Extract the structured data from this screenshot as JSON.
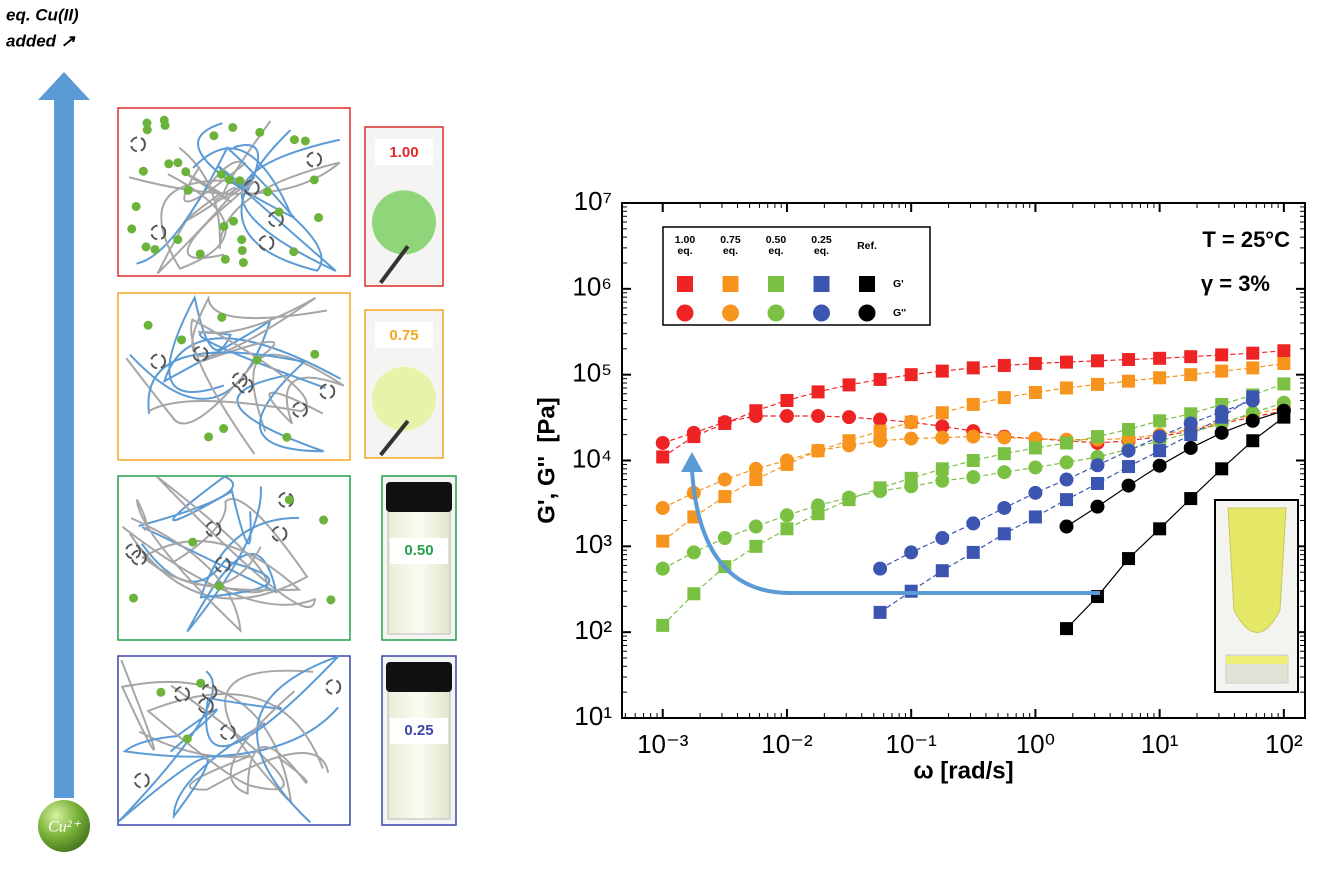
{
  "figure": {
    "axis_label": [
      "eq. Cu(II)",
      "added ↗"
    ],
    "ion": "Cu²⁺",
    "panels": [
      {
        "label": "1.00",
        "color": "#e02a2a"
      },
      {
        "label": "0.75",
        "color": "#f5a623"
      },
      {
        "label": "0.50",
        "color": "#22a04b"
      },
      {
        "label": "0.25",
        "color": "#3a45a8"
      }
    ]
  },
  "chart_data": {
    "type": "scatter",
    "log_x": true,
    "log_y": true,
    "x_label": "ω [rad/s]",
    "y_label": "G', G''  [Pa]",
    "annotations": [
      "T = 25°C",
      "γ = 3%"
    ],
    "moduli": [
      "G'",
      "G''"
    ],
    "x": [
      0.001,
      0.00178,
      0.00316,
      0.00562,
      0.01,
      0.0178,
      0.0316,
      0.0562,
      0.1,
      0.178,
      0.316,
      0.562,
      1,
      1.78,
      3.16,
      5.62,
      10,
      17.8,
      31.6,
      56.2,
      100
    ],
    "xlim": [
      0.00047,
      148
    ],
    "xticks": [
      {
        "value": 0.001,
        "label": "10⁻³"
      },
      {
        "value": 0.01,
        "label": "10⁻²"
      },
      {
        "value": 0.1,
        "label": "10⁻¹"
      },
      {
        "value": 1,
        "label": "10⁰"
      },
      {
        "value": 10,
        "label": "10¹"
      },
      {
        "value": 100,
        "label": "10²"
      }
    ],
    "ylim": [
      10,
      10000000
    ],
    "yticks": [
      {
        "value": 10,
        "label": "10¹"
      },
      {
        "value": 100,
        "label": "10²"
      },
      {
        "value": 1000,
        "label": "10³"
      },
      {
        "value": 10000,
        "label": "10⁴"
      },
      {
        "value": 100000,
        "label": "10⁵"
      },
      {
        "value": 1000000,
        "label": "10⁶"
      },
      {
        "value": 10000000,
        "label": "10⁷"
      }
    ],
    "series": [
      {
        "name": "1.00 eq.",
        "color": "#ee2424",
        "values": [
          11000,
          19000,
          27000,
          38000,
          50000,
          63000,
          76000,
          88000,
          100000,
          110000,
          120000,
          128000,
          135000,
          140000,
          145000,
          150000,
          155000,
          162000,
          170000,
          178000,
          190000
        ],
        "values2": [
          16000,
          21000,
          28000,
          33000,
          33000,
          33000,
          32000,
          30000,
          28000,
          25000,
          22000,
          19000,
          18000,
          17000,
          16000,
          17000,
          19000,
          22000,
          27000,
          32000,
          38000
        ]
      },
      {
        "name": "0.75 eq.",
        "color": "#f7941d",
        "values": [
          1150,
          2200,
          3800,
          6000,
          9000,
          13000,
          17000,
          22000,
          28000,
          36000,
          45000,
          54000,
          62000,
          70000,
          77000,
          84000,
          92000,
          100000,
          110000,
          120000,
          135000
        ],
        "values2": [
          2800,
          4200,
          6000,
          8000,
          10000,
          13000,
          15000,
          17000,
          18000,
          18500,
          19000,
          18500,
          18000,
          17500,
          17500,
          18000,
          20000,
          23000,
          28000,
          34000,
          42000
        ]
      },
      {
        "name": "0.50 eq.",
        "color": "#7ac143",
        "values": [
          120,
          280,
          580,
          1000,
          1600,
          2400,
          3500,
          4800,
          6200,
          8000,
          10000,
          12000,
          14000,
          16000,
          19000,
          23000,
          29000,
          35000,
          45000,
          58000,
          78000
        ],
        "values2": [
          550,
          850,
          1250,
          1700,
          2300,
          3000,
          3700,
          4400,
          5000,
          5800,
          6400,
          7300,
          8300,
          9500,
          11000,
          13500,
          17000,
          21000,
          27000,
          36000,
          47000
        ]
      },
      {
        "name": "0.25 eq.",
        "color": "#3b55b0",
        "values": [
          null,
          null,
          null,
          null,
          null,
          null,
          null,
          170,
          300,
          520,
          850,
          1400,
          2200,
          3500,
          5400,
          8500,
          13000,
          20000,
          32000,
          55000,
          null
        ],
        "values2": [
          null,
          null,
          null,
          null,
          null,
          null,
          null,
          550,
          850,
          1250,
          1850,
          2800,
          4200,
          6000,
          8800,
          13000,
          19000,
          27000,
          37000,
          50000,
          null
        ]
      },
      {
        "name": "Ref.",
        "color": "#000000",
        "values": [
          null,
          null,
          null,
          null,
          null,
          null,
          null,
          null,
          null,
          null,
          null,
          null,
          null,
          110,
          260,
          720,
          1600,
          3600,
          8000,
          17000,
          32000
        ],
        "values2": [
          null,
          null,
          null,
          null,
          null,
          null,
          null,
          null,
          null,
          null,
          null,
          null,
          null,
          1700,
          2900,
          5100,
          8700,
          14000,
          21000,
          29000,
          38000
        ]
      }
    ]
  }
}
